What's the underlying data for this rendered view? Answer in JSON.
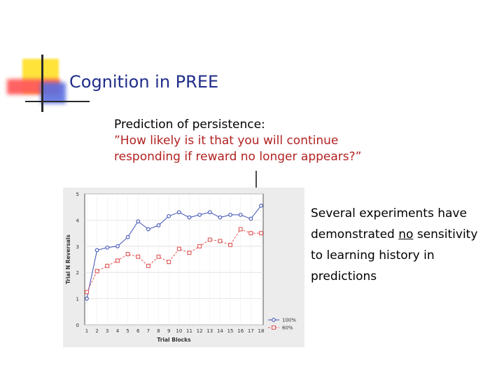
{
  "slide": {
    "title": "Cognition in PREE",
    "subtitle": "Prediction of persistence:",
    "quote_line1": "”How likely is it that you will continue",
    "quote_line2": "responding if reward no longer appears?”",
    "side_text": {
      "line1": "Several experiments have",
      "line2_pre": "demonstrated ",
      "line2_underlined": "no",
      "line2_post": " sensitivity",
      "line3": "to learning history in",
      "line4": "predictions"
    }
  },
  "colors": {
    "title": "#1f2d8a",
    "quote": "#b22222",
    "series_100": "#3f51b5",
    "series_60": "#e05555"
  },
  "chart_data": {
    "type": "line",
    "xlabel": "Trial Blocks",
    "ylabel": "Trial N Reversals",
    "x": [
      1,
      2,
      3,
      4,
      5,
      6,
      7,
      8,
      9,
      10,
      11,
      12,
      13,
      14,
      15,
      16,
      17,
      18
    ],
    "ylim": [
      0,
      5
    ],
    "yticks": [
      0,
      1,
      2,
      3,
      4,
      5
    ],
    "legend_position": "bottom-right",
    "grid": true,
    "series": [
      {
        "name": "100%",
        "color": "#3f51b5",
        "marker": "circle",
        "values": [
          1.0,
          2.85,
          2.95,
          3.0,
          3.35,
          3.95,
          3.65,
          3.8,
          4.15,
          4.3,
          4.1,
          4.2,
          4.3,
          4.1,
          4.2,
          4.2,
          4.05,
          4.55
        ]
      },
      {
        "name": "60%",
        "color": "#e05555",
        "marker": "square",
        "values": [
          1.25,
          2.05,
          2.25,
          2.45,
          2.7,
          2.6,
          2.25,
          2.6,
          2.4,
          2.9,
          2.75,
          3.0,
          3.25,
          3.2,
          3.05,
          3.65,
          3.5,
          3.5
        ]
      }
    ]
  }
}
